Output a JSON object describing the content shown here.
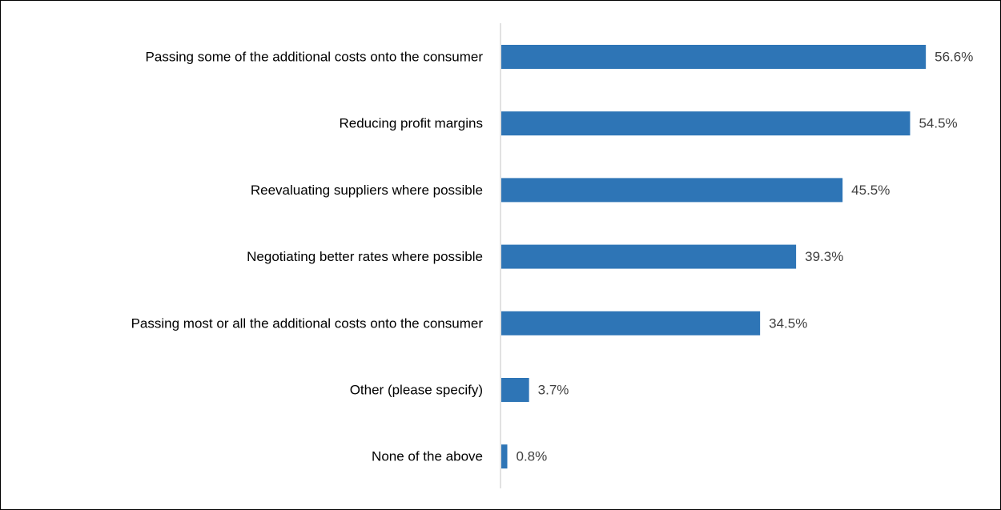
{
  "chart_data": {
    "type": "bar",
    "orientation": "horizontal",
    "categories": [
      "Passing some of the additional costs onto the consumer",
      "Reducing profit margins",
      "Reevaluating suppliers where possible",
      "Negotiating better rates where possible",
      "Passing most or all the additional costs onto the consumer",
      "Other (please specify)",
      "None of the above"
    ],
    "values": [
      56.6,
      54.5,
      45.5,
      39.3,
      34.5,
      3.7,
      0.8
    ],
    "data_labels": [
      "56.6%",
      "54.5%",
      "45.5%",
      "39.3%",
      "34.5%",
      "3.7%",
      "0.8%"
    ],
    "value_unit": "%",
    "title": "",
    "xlabel": "",
    "ylabel": "",
    "xlim": [
      0,
      60
    ],
    "grid": false,
    "legend": "none",
    "bar_color": "#2E75B6",
    "axis_color": "#D9D9D9",
    "label_color": "#000000",
    "data_label_color": "#404040"
  }
}
